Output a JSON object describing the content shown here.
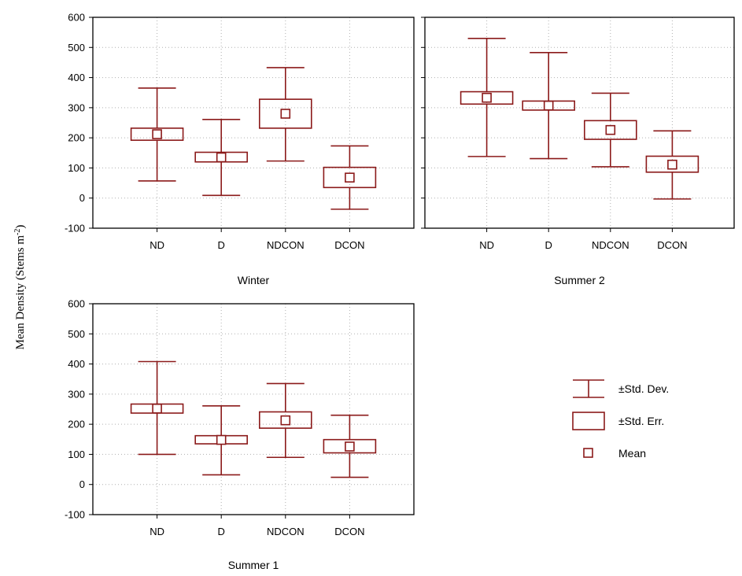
{
  "chart_data": [
    {
      "type": "boxplot",
      "title": "Winter",
      "categories": [
        "ND",
        "D",
        "NDCON",
        "DCON"
      ],
      "ylim": [
        -100,
        600
      ],
      "yticks": [
        -100,
        0,
        100,
        200,
        300,
        400,
        500,
        600
      ],
      "grid": true,
      "mean": [
        212,
        135,
        280,
        68
      ],
      "std_err": [
        [
          192,
          232
        ],
        [
          120,
          152
        ],
        [
          232,
          328
        ],
        [
          35,
          102
        ]
      ],
      "std_dev": [
        [
          57,
          365
        ],
        [
          9,
          261
        ],
        [
          123,
          433
        ],
        [
          -37,
          173
        ]
      ]
    },
    {
      "type": "boxplot",
      "title": "Summer 2",
      "categories": [
        "ND",
        "D",
        "NDCON",
        "DCON"
      ],
      "ylim": [
        -100,
        600
      ],
      "yticks": [
        -100,
        0,
        100,
        200,
        300,
        400,
        500,
        600
      ],
      "grid": true,
      "mean": [
        333,
        307,
        226,
        111
      ],
      "std_err": [
        [
          312,
          353
        ],
        [
          292,
          322
        ],
        [
          195,
          257
        ],
        [
          86,
          139
        ]
      ],
      "std_dev": [
        [
          138,
          530
        ],
        [
          131,
          483
        ],
        [
          104,
          348
        ],
        [
          -3,
          223
        ]
      ]
    },
    {
      "type": "boxplot",
      "title": "Summer 1",
      "categories": [
        "ND",
        "D",
        "NDCON",
        "DCON"
      ],
      "ylim": [
        -100,
        600
      ],
      "yticks": [
        -100,
        0,
        100,
        200,
        300,
        400,
        500,
        600
      ],
      "grid": true,
      "mean": [
        252,
        148,
        213,
        126
      ],
      "std_err": [
        [
          237,
          267
        ],
        [
          135,
          162
        ],
        [
          187,
          241
        ],
        [
          105,
          149
        ]
      ],
      "std_dev": [
        [
          100,
          408
        ],
        [
          32,
          261
        ],
        [
          90,
          335
        ],
        [
          24,
          230
        ]
      ]
    }
  ],
  "ylabel": {
    "main": "Mean Density  (Stems m",
    "superscript": "-2",
    "close": ")"
  },
  "legend": {
    "position": "right",
    "std_dev_label": "±Std. Dev.",
    "std_err_label": "±Std. Err.",
    "mean_label": "Mean"
  },
  "colors": {
    "series": "#8b1a1a",
    "grid": "#b0b0b0",
    "axis": "#000000"
  }
}
